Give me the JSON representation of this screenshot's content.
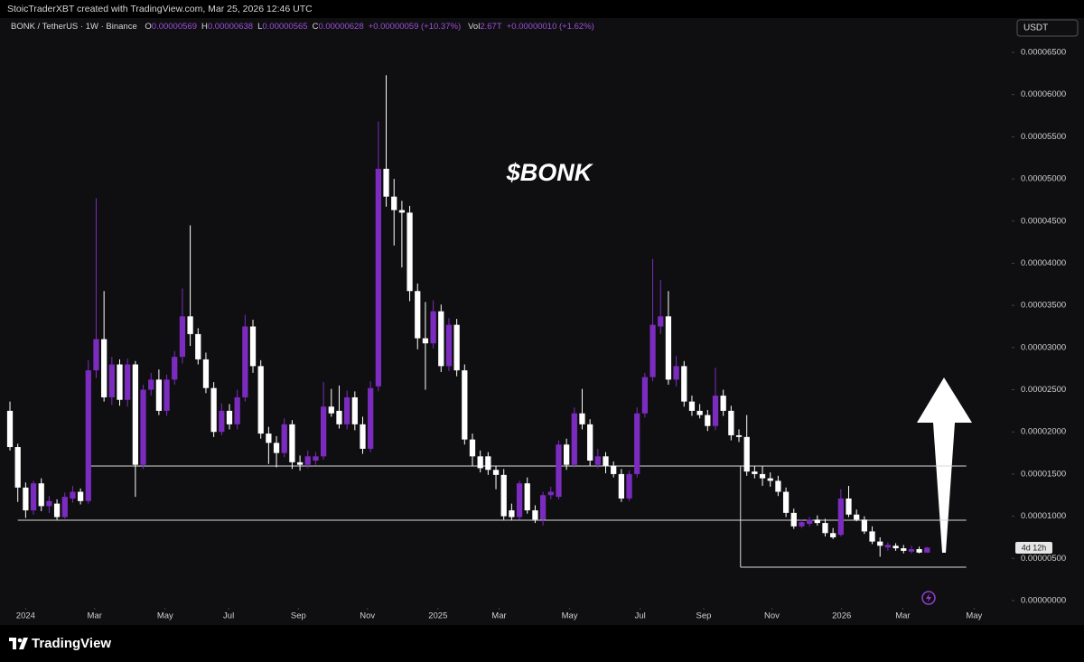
{
  "header": {
    "attribution": "StoicTraderXBT created with TradingView.com, Mar 25, 2026 12:46 UTC",
    "symbol": "BONK / TetherUS · 1W · Binance",
    "ohlc_legend": [
      {
        "key": "O",
        "value": "0.00000569"
      },
      {
        "key": "H",
        "value": "0.00000638"
      },
      {
        "key": "L",
        "value": "0.00000565"
      },
      {
        "key": "C",
        "value": "0.00000628"
      }
    ],
    "change": "+0.00000059 (+10.37%)",
    "vol_key": "Vol",
    "vol_value": "2.67T",
    "vol_change": "+0.00000010 (+1.62%)"
  },
  "currency": "USDT",
  "countdown": "4d 12h",
  "brand": "TradingView",
  "chart_data": {
    "type": "candlestick",
    "title": "$BONK",
    "up_color": "#7b2cbf",
    "down_color": "#ffffff",
    "level_color": "#d8d8d8",
    "ylim": [
      -7.5e-07,
      6.907e-05
    ],
    "yticks": [
      {
        "value": 0,
        "label": "0.00000000"
      },
      {
        "value": 5e-06,
        "label": "0.00000500"
      },
      {
        "value": 1e-05,
        "label": "0.00001000"
      },
      {
        "value": 1.5e-05,
        "label": "0.00001500"
      },
      {
        "value": 2e-05,
        "label": "0.00002000"
      },
      {
        "value": 2.5e-05,
        "label": "0.00002500"
      },
      {
        "value": 3e-05,
        "label": "0.00003000"
      },
      {
        "value": 3.5e-05,
        "label": "0.00003500"
      },
      {
        "value": 4e-05,
        "label": "0.00004000"
      },
      {
        "value": 4.5e-05,
        "label": "0.00004500"
      },
      {
        "value": 5e-05,
        "label": "0.00005000"
      },
      {
        "value": 5.5e-05,
        "label": "0.00005500"
      },
      {
        "value": 6e-05,
        "label": "0.00006000"
      },
      {
        "value": 6.5e-05,
        "label": "0.00006500"
      }
    ],
    "xlim": [
      -1.27,
      127.8
    ],
    "xticks": [
      {
        "value": 2.0,
        "label": "2024"
      },
      {
        "value": 10.8,
        "label": "Mar"
      },
      {
        "value": 19.8,
        "label": "May"
      },
      {
        "value": 27.9,
        "label": "Jul"
      },
      {
        "value": 36.8,
        "label": "Sep"
      },
      {
        "value": 45.6,
        "label": "Nov"
      },
      {
        "value": 54.6,
        "label": "2025"
      },
      {
        "value": 62.4,
        "label": "Mar"
      },
      {
        "value": 71.4,
        "label": "May"
      },
      {
        "value": 80.4,
        "label": "Jul"
      },
      {
        "value": 88.5,
        "label": "Sep"
      },
      {
        "value": 97.2,
        "label": "Nov"
      },
      {
        "value": 106.1,
        "label": "2026"
      },
      {
        "value": 113.9,
        "label": "Mar"
      },
      {
        "value": 123.0,
        "label": "May"
      }
    ],
    "levels": [
      {
        "value": 1.596e-05,
        "from": 10.0,
        "to": 122.0
      },
      {
        "value": 9.53e-06,
        "from": 1.0,
        "to": 122.0
      },
      {
        "value": 3.96e-06,
        "from": 93.2,
        "to": 122.0
      }
    ],
    "ohlc": [
      [
        2.25e-05,
        2.36e-05,
        1.78e-05,
        1.82e-05
      ],
      [
        1.82e-05,
        1.86e-05,
        1.17e-05,
        1.34e-05
      ],
      [
        1.34e-05,
        1.4e-05,
        9.8e-06,
        1.07e-05
      ],
      [
        1.07e-05,
        1.42e-05,
        1.02e-05,
        1.39e-05
      ],
      [
        1.39e-05,
        1.45e-05,
        1.06e-05,
        1.12e-05
      ],
      [
        1.12e-05,
        1.24e-05,
        1.04e-05,
        1.18e-05
      ],
      [
        1.15e-05,
        1.2e-05,
        9.6e-06,
        9.9e-06
      ],
      [
        9.9e-06,
        1.28e-05,
        9.7e-06,
        1.23e-05
      ],
      [
        1.21e-05,
        1.36e-05,
        1.16e-05,
        1.29e-05
      ],
      [
        1.29e-05,
        1.33e-05,
        1.14e-05,
        1.18e-05
      ],
      [
        1.18e-05,
        2.85e-05,
        1.15e-05,
        2.73e-05
      ],
      [
        2.73e-05,
        4.77e-05,
        2.64e-05,
        3.1e-05
      ],
      [
        3.1e-05,
        3.67e-05,
        2.36e-05,
        2.41e-05
      ],
      [
        2.41e-05,
        2.89e-05,
        2.32e-05,
        2.8e-05
      ],
      [
        2.8e-05,
        2.86e-05,
        2.31e-05,
        2.38e-05
      ],
      [
        2.38e-05,
        2.87e-05,
        2.3e-05,
        2.8e-05
      ],
      [
        2.8e-05,
        2.84e-05,
        1.23e-05,
        1.61e-05
      ],
      [
        1.61e-05,
        2.56e-05,
        1.56e-05,
        2.5e-05
      ],
      [
        2.5e-05,
        2.7e-05,
        2.43e-05,
        2.62e-05
      ],
      [
        2.62e-05,
        2.74e-05,
        2.2e-05,
        2.25e-05
      ],
      [
        2.25e-05,
        2.68e-05,
        2.19e-05,
        2.62e-05
      ],
      [
        2.62e-05,
        2.96e-05,
        2.56e-05,
        2.89e-05
      ],
      [
        2.89e-05,
        3.7e-05,
        2.81e-05,
        3.37e-05
      ],
      [
        3.37e-05,
        4.45e-05,
        3.02e-05,
        3.16e-05
      ],
      [
        3.16e-05,
        3.23e-05,
        2.8e-05,
        2.86e-05
      ],
      [
        2.86e-05,
        2.94e-05,
        2.46e-05,
        2.52e-05
      ],
      [
        2.52e-05,
        2.59e-05,
        1.94e-05,
        2e-05
      ],
      [
        2e-05,
        2.34e-05,
        1.96e-05,
        2.25e-05
      ],
      [
        2.25e-05,
        2.33e-05,
        2.03e-05,
        2.09e-05
      ],
      [
        2.09e-05,
        2.5e-05,
        2.03e-05,
        2.41e-05
      ],
      [
        2.41e-05,
        3.39e-05,
        2.36e-05,
        3.25e-05
      ],
      [
        3.25e-05,
        3.33e-05,
        2.7e-05,
        2.78e-05
      ],
      [
        2.78e-05,
        2.85e-05,
        1.92e-05,
        1.98e-05
      ],
      [
        1.98e-05,
        2.06e-05,
        1.62e-05,
        1.87e-05
      ],
      [
        1.87e-05,
        1.95e-05,
        1.58e-05,
        1.75e-05
      ],
      [
        1.75e-05,
        2.16e-05,
        1.7e-05,
        2.09e-05
      ],
      [
        2.09e-05,
        2.14e-05,
        1.56e-05,
        1.64e-05
      ],
      [
        1.64e-05,
        1.72e-05,
        1.54e-05,
        1.61e-05
      ],
      [
        1.61e-05,
        1.78e-05,
        1.57e-05,
        1.71e-05
      ],
      [
        1.66e-05,
        1.76e-05,
        1.61e-05,
        1.71e-05
      ],
      [
        1.71e-05,
        2.59e-05,
        1.67e-05,
        2.3e-05
      ],
      [
        2.3e-05,
        2.51e-05,
        2.18e-05,
        2.22e-05
      ],
      [
        2.25e-05,
        2.55e-05,
        2.04e-05,
        2.09e-05
      ],
      [
        2.09e-05,
        2.49e-05,
        2.03e-05,
        2.41e-05
      ],
      [
        2.41e-05,
        2.48e-05,
        2.02e-05,
        2.09e-05
      ],
      [
        2.09e-05,
        2.18e-05,
        1.74e-05,
        1.8e-05
      ],
      [
        1.8e-05,
        2.6e-05,
        1.76e-05,
        2.52e-05
      ],
      [
        2.54e-05,
        5.68e-05,
        2.48e-05,
        5.12e-05
      ],
      [
        5.12e-05,
        6.23e-05,
        4.67e-05,
        4.79e-05
      ],
      [
        4.79e-05,
        5e-05,
        4.21e-05,
        4.63e-05
      ],
      [
        4.63e-05,
        4.74e-05,
        3.95e-05,
        4.6e-05
      ],
      [
        4.6e-05,
        4.68e-05,
        3.55e-05,
        3.67e-05
      ],
      [
        3.67e-05,
        3.76e-05,
        2.98e-05,
        3.11e-05
      ],
      [
        3.11e-05,
        3.54e-05,
        2.5e-05,
        3.05e-05
      ],
      [
        3.05e-05,
        3.56e-05,
        2.99e-05,
        3.43e-05
      ],
      [
        3.43e-05,
        3.51e-05,
        2.71e-05,
        2.78e-05
      ],
      [
        2.78e-05,
        3.35e-05,
        2.72e-05,
        3.27e-05
      ],
      [
        3.27e-05,
        3.34e-05,
        2.66e-05,
        2.73e-05
      ],
      [
        2.73e-05,
        2.8e-05,
        1.85e-05,
        1.91e-05
      ],
      [
        1.91e-05,
        1.98e-05,
        1.6e-05,
        1.71e-05
      ],
      [
        1.71e-05,
        1.78e-05,
        1.52e-05,
        1.57e-05
      ],
      [
        1.71e-05,
        1.76e-05,
        1.49e-05,
        1.55e-05
      ],
      [
        1.55e-05,
        1.6e-05,
        1.32e-05,
        1.49e-05
      ],
      [
        1.49e-05,
        1.56e-05,
        9.6e-06,
        1e-05
      ],
      [
        1.07e-05,
        1.15e-05,
        9.5e-06,
        9.9e-06
      ],
      [
        9.9e-06,
        1.42e-05,
        9.6e-06,
        1.39e-05
      ],
      [
        1.39e-05,
        1.46e-05,
        1.03e-05,
        1.07e-05
      ],
      [
        1.07e-05,
        1.13e-05,
        9.2e-06,
        9.6e-06
      ],
      [
        9.6e-06,
        1.29e-05,
        8.9e-06,
        1.25e-05
      ],
      [
        1.25e-05,
        1.35e-05,
        1.2e-05,
        1.29e-05
      ],
      [
        1.23e-05,
        1.9e-05,
        1.2e-05,
        1.85e-05
      ],
      [
        1.85e-05,
        1.92e-05,
        1.55e-05,
        1.61e-05
      ],
      [
        1.61e-05,
        2.29e-05,
        1.58e-05,
        2.22e-05
      ],
      [
        2.22e-05,
        2.51e-05,
        2.03e-05,
        2.09e-05
      ],
      [
        2.09e-05,
        2.15e-05,
        1.6e-05,
        1.66e-05
      ],
      [
        1.61e-05,
        1.8e-05,
        1.57e-05,
        1.71e-05
      ],
      [
        1.71e-05,
        1.76e-05,
        1.51e-05,
        1.6e-05
      ],
      [
        1.6e-05,
        1.65e-05,
        1.46e-05,
        1.5e-05
      ],
      [
        1.5e-05,
        1.56e-05,
        1.17e-05,
        1.21e-05
      ],
      [
        1.21e-05,
        1.54e-05,
        1.18e-05,
        1.5e-05
      ],
      [
        1.5e-05,
        2.29e-05,
        1.46e-05,
        2.22e-05
      ],
      [
        2.22e-05,
        2.7e-05,
        2.17e-05,
        2.65e-05
      ],
      [
        2.65e-05,
        4.05e-05,
        2.6e-05,
        3.27e-05
      ],
      [
        3.25e-05,
        3.8e-05,
        3.16e-05,
        3.37e-05
      ],
      [
        3.37e-05,
        3.67e-05,
        2.56e-05,
        2.62e-05
      ],
      [
        2.62e-05,
        2.9e-05,
        2.54e-05,
        2.78e-05
      ],
      [
        2.78e-05,
        2.84e-05,
        2.3e-05,
        2.36e-05
      ],
      [
        2.36e-05,
        2.43e-05,
        2.19e-05,
        2.25e-05
      ],
      [
        2.25e-05,
        2.33e-05,
        2.16e-05,
        2.2e-05
      ],
      [
        2.2e-05,
        2.26e-05,
        2.01e-05,
        2.07e-05
      ],
      [
        2.07e-05,
        2.76e-05,
        2.02e-05,
        2.43e-05
      ],
      [
        2.43e-05,
        2.5e-05,
        2.19e-05,
        2.25e-05
      ],
      [
        2.25e-05,
        2.31e-05,
        1.9e-05,
        1.96e-05
      ],
      [
        1.96e-05,
        2.03e-05,
        1.88e-05,
        1.94e-05
      ],
      [
        1.94e-05,
        2.2e-05,
        1.48e-05,
        1.53e-05
      ],
      [
        1.53e-05,
        1.59e-05,
        1.45e-05,
        1.5e-05
      ],
      [
        1.5e-05,
        1.59e-05,
        1.36e-05,
        1.45e-05
      ],
      [
        1.45e-05,
        1.52e-05,
        1.35e-05,
        1.42e-05
      ],
      [
        1.42e-05,
        1.48e-05,
        1.24e-05,
        1.29e-05
      ],
      [
        1.29e-05,
        1.34e-05,
        9.9e-06,
        1.04e-05
      ],
      [
        1.04e-05,
        1.09e-05,
        8.5e-06,
        8.8e-06
      ],
      [
        8.8e-06,
        9.6e-06,
        8.6e-06,
        9.3e-06
      ],
      [
        9.1e-06,
        9.9e-06,
        8.8e-06,
        9.6e-06
      ],
      [
        9.6e-06,
        1.01e-05,
        8.9e-06,
        9.2e-06
      ],
      [
        9.2e-06,
        9.7e-06,
        7.6e-06,
        8e-06
      ],
      [
        8e-06,
        8.6e-06,
        7.3e-06,
        7.5e-06
      ],
      [
        7.8e-06,
        1.32e-05,
        7.6e-06,
        1.21e-05
      ],
      [
        1.21e-05,
        1.36e-05,
        9.9e-06,
        1.02e-05
      ],
      [
        1.02e-05,
        1.08e-05,
        9.4e-06,
        9.6e-06
      ],
      [
        9.6e-06,
        1e-05,
        7.9e-06,
        8.2e-06
      ],
      [
        8.2e-06,
        8.8e-06,
        6.7e-06,
        7e-06
      ],
      [
        7e-06,
        7.5e-06,
        5.2e-06,
        6.5e-06
      ],
      [
        6.3e-06,
        6.9e-06,
        5.9e-06,
        6.6e-06
      ],
      [
        6.5e-06,
        6.8e-06,
        5.9e-06,
        6.2e-06
      ],
      [
        6.2e-06,
        6.6e-06,
        5.6e-06,
        5.9e-06
      ],
      [
        5.8e-06,
        6.5e-06,
        5.6e-06,
        6.1e-06
      ],
      [
        6.1e-06,
        6.4e-06,
        5.6e-06,
        5.69e-06
      ],
      [
        5.69e-06,
        6.38e-06,
        5.65e-06,
        6.28e-06
      ]
    ]
  }
}
